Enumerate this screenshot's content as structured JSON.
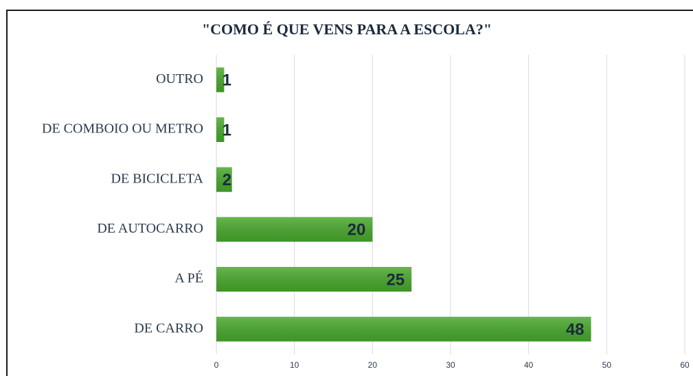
{
  "chart_data": {
    "type": "bar",
    "orientation": "horizontal",
    "title": "\"COMO É QUE VENS PARA A ESCOLA?\"",
    "categories": [
      "OUTRO",
      "DE COMBOIO OU METRO",
      "DE BICICLETA",
      "DE AUTOCARRO",
      "A PÉ",
      "DE CARRO"
    ],
    "values": [
      1,
      1,
      2,
      20,
      25,
      48
    ],
    "color": "#46a62a",
    "xlim": [
      0,
      60
    ],
    "xticks": [
      0,
      10,
      20,
      30,
      40,
      50,
      60
    ],
    "grid": true
  }
}
